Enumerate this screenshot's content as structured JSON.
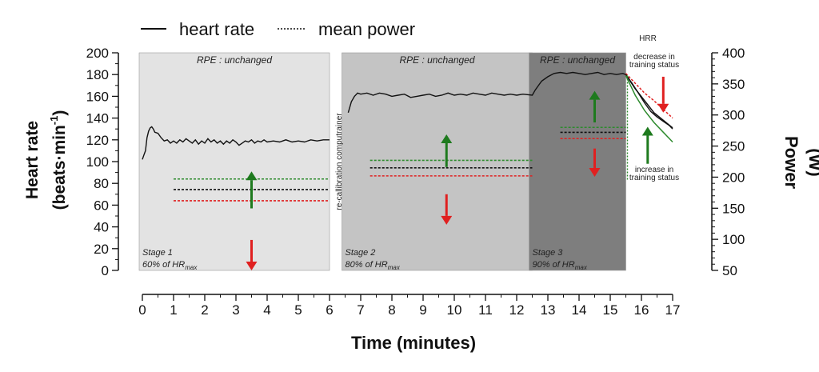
{
  "chart_data": {
    "type": "line",
    "legend": [
      {
        "name": "heart rate",
        "style": "solid"
      },
      {
        "name": "mean power",
        "style": "dotted"
      }
    ],
    "xlabel": "Time (minutes)",
    "ylabel_left_line1": "Heart rate",
    "ylabel_left_line2": "(beats·min",
    "ylabel_left_sup": "-1",
    "ylabel_left_close": ")",
    "ylabel_right_line1": "Power",
    "ylabel_right_line2": "(W)",
    "xlim": [
      0,
      17
    ],
    "ylim_left": [
      0,
      200
    ],
    "ylim_right": [
      50,
      400
    ],
    "x_ticks": [
      "0",
      "1",
      "2",
      "3",
      "4",
      "5",
      "6",
      "7",
      "8",
      "9",
      "10",
      "11",
      "12",
      "13",
      "14",
      "15",
      "16",
      "17"
    ],
    "y_left_ticks": [
      "0",
      "20",
      "40",
      "60",
      "80",
      "100",
      "120",
      "140",
      "160",
      "180",
      "200"
    ],
    "y_right_ticks": [
      "50",
      "100",
      "150",
      "200",
      "250",
      "300",
      "350",
      "400"
    ],
    "stages": [
      {
        "x0": 0,
        "x1": 6.0,
        "color": "#e3e3e3",
        "rpe": "RPE : unchanged",
        "stage": "Stage 1",
        "hr_prefix": "60% of HR",
        "hr_sub": "max"
      },
      {
        "x0": 6.5,
        "x1": 12.5,
        "color": "#c4c4c4",
        "rpe": "RPE : unchanged",
        "stage": "Stage 2",
        "hr_prefix": "80% of HR",
        "hr_sub": "max"
      },
      {
        "x0": 12.5,
        "x1": 15.5,
        "color": "#7e7e7e",
        "rpe": "RPE : unchanged",
        "stage": "Stage 3",
        "hr_prefix": "90% of HR",
        "hr_sub": "max"
      }
    ],
    "recalibration_label": "re-callibration computrainer",
    "hrr_label": "HRR",
    "decrease_label": [
      "decrease in",
      "training status"
    ],
    "increase_label": [
      "increase in",
      "training status"
    ],
    "heart_rate_series": [
      [
        0.0,
        102
      ],
      [
        0.05,
        106
      ],
      [
        0.1,
        110
      ],
      [
        0.15,
        122
      ],
      [
        0.2,
        128
      ],
      [
        0.25,
        131
      ],
      [
        0.3,
        132
      ],
      [
        0.35,
        130
      ],
      [
        0.4,
        127
      ],
      [
        0.5,
        126
      ],
      [
        0.6,
        122
      ],
      [
        0.7,
        119
      ],
      [
        0.8,
        120
      ],
      [
        0.9,
        117
      ],
      [
        1.0,
        119
      ],
      [
        1.1,
        117
      ],
      [
        1.2,
        120
      ],
      [
        1.3,
        118
      ],
      [
        1.4,
        121
      ],
      [
        1.5,
        119
      ],
      [
        1.6,
        117
      ],
      [
        1.7,
        120
      ],
      [
        1.8,
        116
      ],
      [
        1.9,
        119
      ],
      [
        2.0,
        117
      ],
      [
        2.1,
        121
      ],
      [
        2.2,
        118
      ],
      [
        2.3,
        120
      ],
      [
        2.4,
        117
      ],
      [
        2.5,
        119
      ],
      [
        2.6,
        116
      ],
      [
        2.7,
        119
      ],
      [
        2.8,
        117
      ],
      [
        2.9,
        120
      ],
      [
        3.0,
        118
      ],
      [
        3.1,
        115
      ],
      [
        3.2,
        117
      ],
      [
        3.3,
        119
      ],
      [
        3.4,
        118
      ],
      [
        3.5,
        120
      ],
      [
        3.6,
        117
      ],
      [
        3.7,
        119
      ],
      [
        3.8,
        118
      ],
      [
        3.9,
        120
      ],
      [
        4.0,
        118
      ],
      [
        4.2,
        119
      ],
      [
        4.4,
        118
      ],
      [
        4.6,
        120
      ],
      [
        4.8,
        118
      ],
      [
        5.0,
        119
      ],
      [
        5.2,
        118
      ],
      [
        5.4,
        120
      ],
      [
        5.6,
        119
      ],
      [
        5.8,
        120
      ],
      [
        6.0,
        120
      ],
      [
        6.6,
        145
      ],
      [
        6.7,
        155
      ],
      [
        6.8,
        160
      ],
      [
        6.9,
        163
      ],
      [
        7.0,
        162
      ],
      [
        7.2,
        163
      ],
      [
        7.4,
        161
      ],
      [
        7.6,
        163
      ],
      [
        7.8,
        162
      ],
      [
        8.0,
        160
      ],
      [
        8.2,
        161
      ],
      [
        8.4,
        162
      ],
      [
        8.6,
        159
      ],
      [
        8.8,
        160
      ],
      [
        9.0,
        161
      ],
      [
        9.2,
        162
      ],
      [
        9.4,
        160
      ],
      [
        9.6,
        161
      ],
      [
        9.8,
        163
      ],
      [
        10.0,
        161
      ],
      [
        10.2,
        162
      ],
      [
        10.4,
        161
      ],
      [
        10.6,
        163
      ],
      [
        10.8,
        162
      ],
      [
        11.0,
        161
      ],
      [
        11.2,
        163
      ],
      [
        11.4,
        162
      ],
      [
        11.6,
        161
      ],
      [
        11.8,
        162
      ],
      [
        12.0,
        161
      ],
      [
        12.2,
        162
      ],
      [
        12.5,
        161
      ],
      [
        12.6,
        166
      ],
      [
        12.8,
        174
      ],
      [
        13.0,
        178
      ],
      [
        13.2,
        181
      ],
      [
        13.4,
        182
      ],
      [
        13.6,
        181
      ],
      [
        13.8,
        182
      ],
      [
        14.0,
        181
      ],
      [
        14.2,
        180
      ],
      [
        14.4,
        181
      ],
      [
        14.6,
        182
      ],
      [
        14.8,
        180
      ],
      [
        15.0,
        181
      ],
      [
        15.2,
        180
      ],
      [
        15.4,
        181
      ],
      [
        15.5,
        180
      ],
      [
        15.7,
        172
      ],
      [
        15.9,
        163
      ],
      [
        16.1,
        154
      ],
      [
        16.3,
        146
      ],
      [
        16.5,
        141
      ],
      [
        16.7,
        137
      ],
      [
        16.9,
        133
      ],
      [
        17.0,
        130
      ]
    ],
    "mean_power_levels": [
      {
        "x0": 1.0,
        "x1": 6.0,
        "power_w": 180,
        "color": "#111111"
      },
      {
        "x0": 1.0,
        "x1": 6.0,
        "power_w": 197,
        "color": "#2e8b2e"
      },
      {
        "x0": 1.0,
        "x1": 6.0,
        "power_w": 162,
        "color": "#e02020"
      },
      {
        "x0": 7.3,
        "x1": 12.5,
        "power_w": 215,
        "color": "#111111"
      },
      {
        "x0": 7.3,
        "x1": 12.5,
        "power_w": 227,
        "color": "#2e8b2e"
      },
      {
        "x0": 7.3,
        "x1": 12.5,
        "power_w": 202,
        "color": "#e02020"
      },
      {
        "x0": 13.4,
        "x1": 15.5,
        "power_w": 272,
        "color": "#111111"
      },
      {
        "x0": 13.4,
        "x1": 15.5,
        "power_w": 280,
        "color": "#2e8b2e"
      },
      {
        "x0": 13.4,
        "x1": 15.5,
        "power_w": 262,
        "color": "#e02020"
      }
    ],
    "hrr_curves": [
      {
        "color": "#e02020",
        "style": "dotted",
        "points": [
          [
            15.5,
            181
          ],
          [
            15.8,
            172
          ],
          [
            16.1,
            163
          ],
          [
            16.4,
            156
          ],
          [
            16.7,
            148
          ],
          [
            17.0,
            140
          ]
        ]
      },
      {
        "color": "#111111",
        "style": "solid",
        "points": [
          [
            15.5,
            180
          ],
          [
            15.8,
            167
          ],
          [
            16.1,
            156
          ],
          [
            16.4,
            145
          ],
          [
            16.7,
            138
          ],
          [
            17.0,
            131
          ]
        ]
      },
      {
        "color": "#2e8b2e",
        "style": "solid",
        "points": [
          [
            15.5,
            179
          ],
          [
            15.8,
            161
          ],
          [
            16.1,
            147
          ],
          [
            16.4,
            136
          ],
          [
            16.7,
            127
          ],
          [
            17.0,
            118
          ]
        ]
      }
    ],
    "green_drop_x": 15.5,
    "arrows": [
      {
        "x": 3.5,
        "y_from": 57,
        "y_to": 91,
        "direction": "up",
        "color": "#1e7a1e"
      },
      {
        "x": 3.5,
        "y_from": 28,
        "y_to": 0,
        "direction": "down",
        "color": "#e02020"
      },
      {
        "x": 9.75,
        "y_from": 95,
        "y_to": 125,
        "direction": "up",
        "color": "#1e7a1e"
      },
      {
        "x": 9.75,
        "y_from": 70,
        "y_to": 42,
        "direction": "down",
        "color": "#e02020"
      },
      {
        "x": 14.5,
        "y_from": 136,
        "y_to": 165,
        "direction": "up",
        "color": "#1e7a1e"
      },
      {
        "x": 14.5,
        "y_from": 112,
        "y_to": 86,
        "direction": "down",
        "color": "#e02020"
      },
      {
        "x": 16.7,
        "y_from": 178,
        "y_to": 145,
        "direction": "down",
        "color": "#e02020"
      },
      {
        "x": 16.2,
        "y_from": 98,
        "y_to": 132,
        "direction": "up",
        "color": "#1e7a1e"
      }
    ],
    "grid": false
  }
}
